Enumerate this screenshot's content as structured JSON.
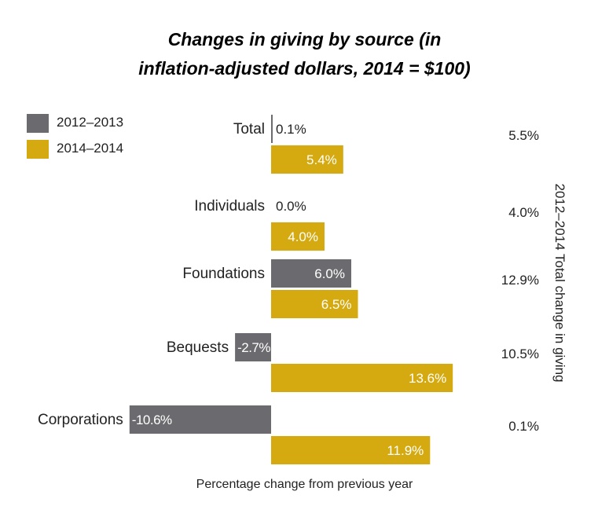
{
  "title_line1": "Changes in giving by source (in",
  "title_line2": "inflation-adjusted dollars, 2014 = $100)",
  "colors": {
    "series1": "#6b6b6f",
    "series2": "#d4aa10"
  },
  "chart_data": {
    "type": "bar",
    "orientation": "horizontal",
    "categories": [
      "Total",
      "Individuals",
      "Foundations",
      "Bequests",
      "Corporations"
    ],
    "series": [
      {
        "name": "2012–2013",
        "values": [
          0.1,
          0.0,
          6.0,
          -2.7,
          -10.6
        ],
        "labels": [
          "0.1%",
          "0.0%",
          "6.0%",
          "-2.7%",
          "-10.6%"
        ]
      },
      {
        "name": "2014–2014",
        "values": [
          5.4,
          4.0,
          6.5,
          13.6,
          11.9
        ],
        "labels": [
          "5.4%",
          "4.0%",
          "6.5%",
          "13.6%",
          "11.9%"
        ]
      }
    ],
    "total_change_title": "2012–2014 Total change in giving",
    "total_change": [
      "5.5%",
      "4.0%",
      "12.9%",
      "10.5%",
      "0.1%"
    ],
    "xlabel": "Percentage change from previous year",
    "xlim": [
      -10.6,
      13.6
    ],
    "legend": "top-left"
  }
}
